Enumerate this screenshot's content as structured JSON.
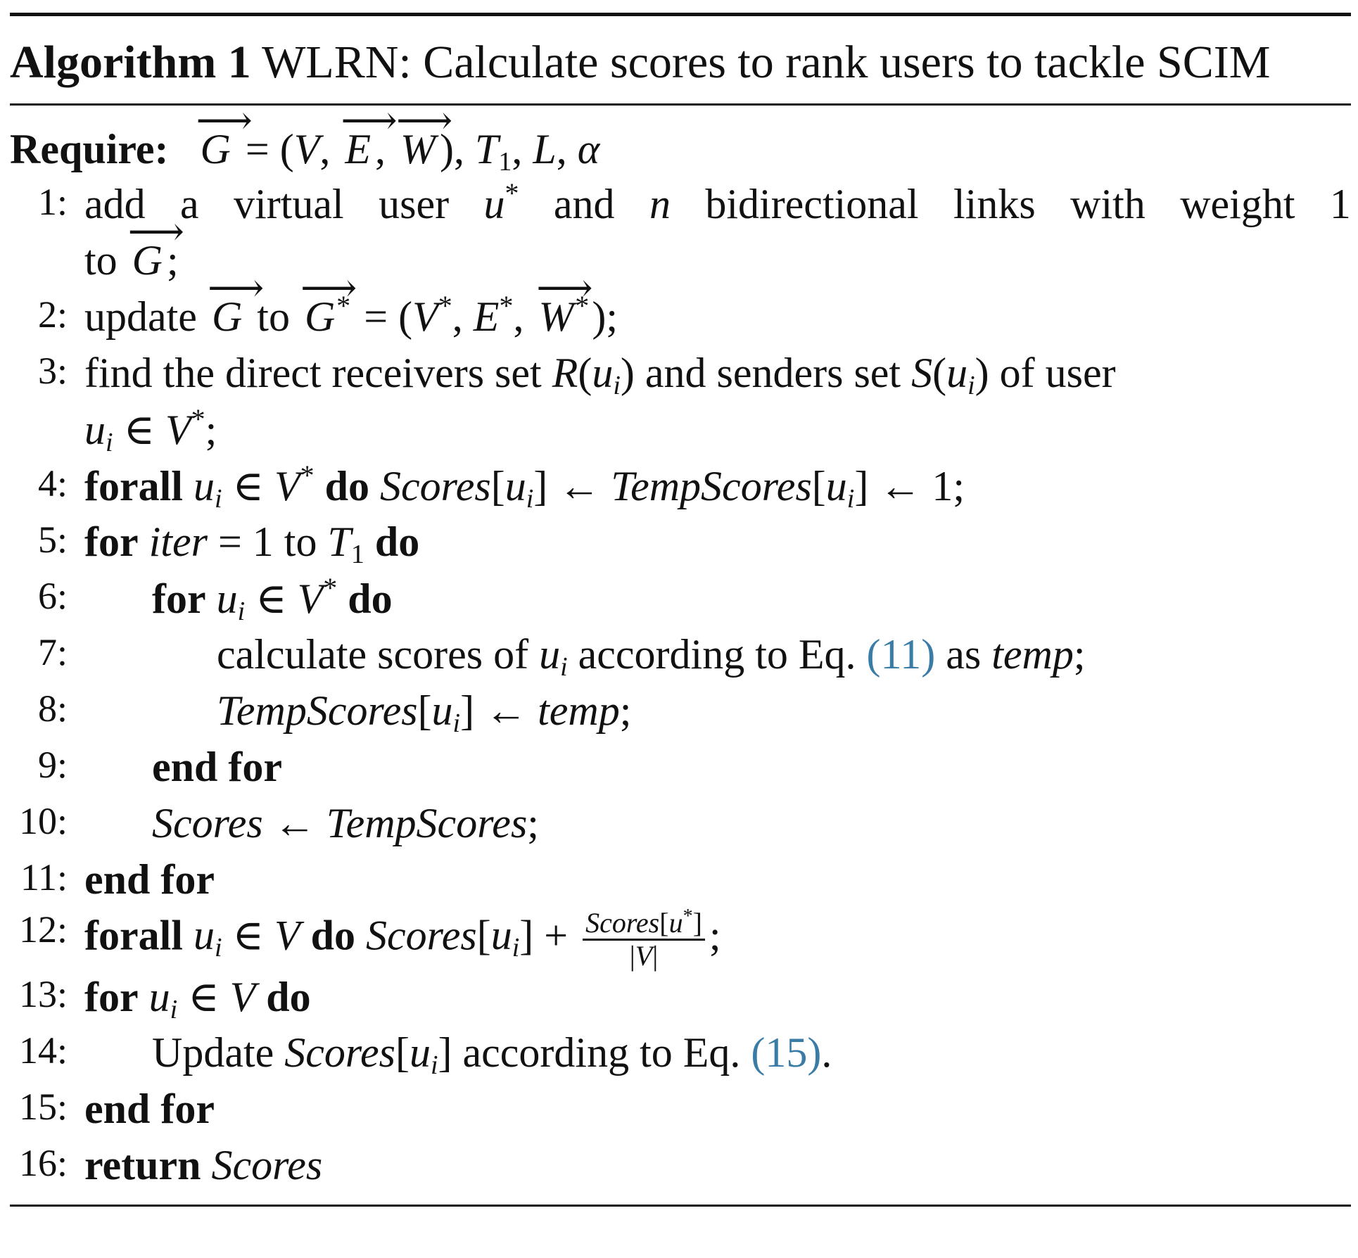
{
  "algorithm": {
    "label": "Algorithm 1",
    "title": "WLRN: Calculate scores to rank users to tackle SCIM",
    "require_label": "Require:"
  },
  "lines": [
    {
      "num": "1:"
    },
    {
      "num": "2:"
    },
    {
      "num": "3:"
    },
    {
      "num": "4:"
    },
    {
      "num": "5:"
    },
    {
      "num": "6:"
    },
    {
      "num": "7:"
    },
    {
      "num": "8:"
    },
    {
      "num": "9:"
    },
    {
      "num": "10:"
    },
    {
      "num": "11:"
    },
    {
      "num": "12:"
    },
    {
      "num": "13:"
    },
    {
      "num": "14:"
    },
    {
      "num": "15:"
    },
    {
      "num": "16:"
    }
  ],
  "refs": {
    "eq11": "(11)",
    "eq15": "(15)"
  },
  "colors": {
    "link": "#3a7ca5",
    "text": "#111111"
  }
}
